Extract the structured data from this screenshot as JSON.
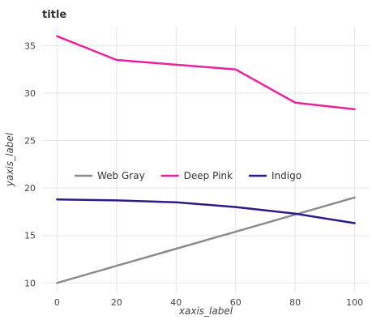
{
  "chart_data": {
    "type": "line",
    "title": "title",
    "xlabel": "xaxis_label",
    "ylabel": "yaxis_label",
    "xlim": [
      -5,
      105
    ],
    "ylim": [
      9,
      37
    ],
    "x_ticks": [
      0,
      20,
      40,
      60,
      80,
      100
    ],
    "y_ticks": [
      10,
      15,
      20,
      25,
      30,
      35
    ],
    "grid": true,
    "legend_position": "middle",
    "series": [
      {
        "name": "Web Gray",
        "color": "#8c8c8c",
        "x": [
          0,
          20,
          40,
          60,
          80,
          100
        ],
        "y": [
          10.0,
          11.8,
          13.6,
          15.4,
          17.2,
          19.0
        ]
      },
      {
        "name": "Deep Pink",
        "color": "#e8239b",
        "x": [
          0,
          20,
          40,
          60,
          80,
          100
        ],
        "y": [
          36.0,
          33.5,
          33.0,
          32.5,
          29.0,
          28.3
        ]
      },
      {
        "name": "Indigo",
        "color": "#2e1a87",
        "x": [
          0,
          20,
          40,
          60,
          80,
          100
        ],
        "y": [
          18.8,
          18.7,
          18.5,
          18.0,
          17.3,
          16.3
        ]
      }
    ]
  }
}
